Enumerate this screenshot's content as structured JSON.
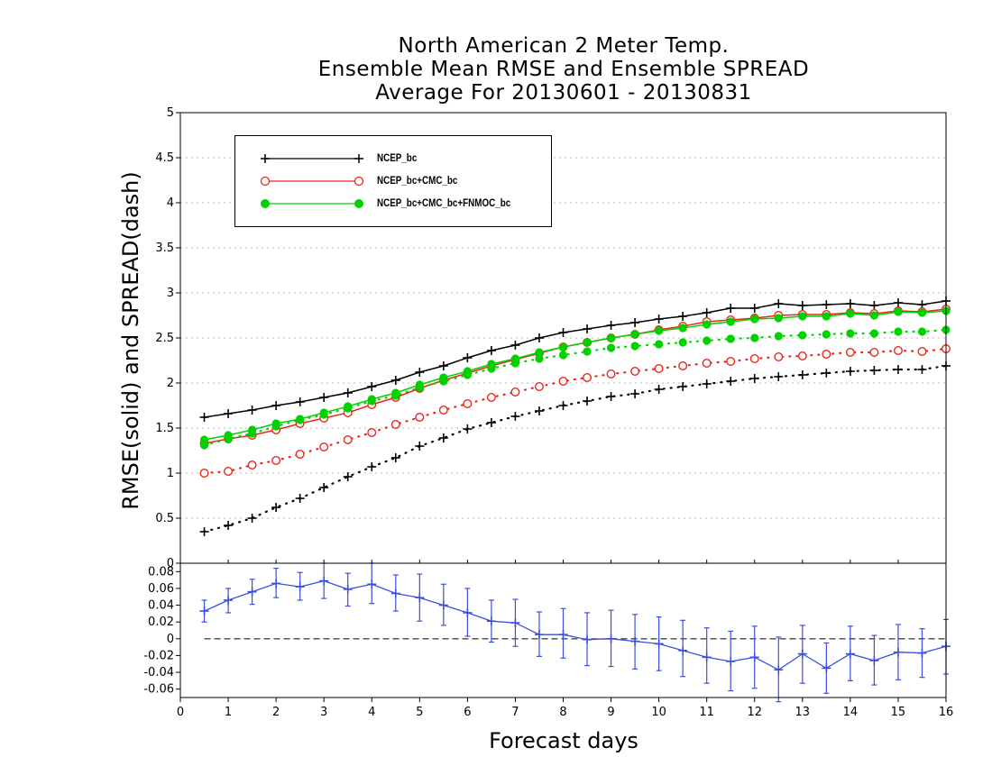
{
  "chart_data": [
    {
      "type": "line",
      "title": [
        "North American 2 Meter Temp.",
        "Ensemble Mean RMSE and Ensemble SPREAD",
        "Average For 20130601 - 20130831"
      ],
      "xlabel": "Forecast days",
      "ylabel": "RMSE(solid) and SPREAD(dash)",
      "xlim": [
        0,
        16
      ],
      "ylim": [
        0,
        5
      ],
      "yticks": [
        "0",
        "0.5",
        "1",
        "1.5",
        "2",
        "2.5",
        "3",
        "3.5",
        "4",
        "4.5",
        "5"
      ],
      "grid": true,
      "legend_position": "top-left",
      "x": [
        0.5,
        1,
        1.5,
        2,
        2.5,
        3,
        3.5,
        4,
        4.5,
        5,
        5.5,
        6,
        6.5,
        7,
        7.5,
        8,
        8.5,
        9,
        9.5,
        10,
        10.5,
        11,
        11.5,
        12,
        12.5,
        13,
        13.5,
        14,
        14.5,
        15,
        15.5,
        16
      ],
      "series": [
        {
          "name": "NCEP_bc",
          "color": "#000000",
          "marker": "plus",
          "rmse": [
            1.62,
            1.66,
            1.7,
            1.75,
            1.79,
            1.84,
            1.89,
            1.96,
            2.03,
            2.12,
            2.19,
            2.28,
            2.36,
            2.42,
            2.5,
            2.56,
            2.6,
            2.64,
            2.67,
            2.71,
            2.74,
            2.78,
            2.83,
            2.83,
            2.88,
            2.86,
            2.87,
            2.88,
            2.86,
            2.89,
            2.87,
            2.91
          ],
          "spread": [
            0.35,
            0.42,
            0.5,
            0.62,
            0.72,
            0.84,
            0.96,
            1.07,
            1.17,
            1.3,
            1.39,
            1.49,
            1.56,
            1.63,
            1.69,
            1.75,
            1.8,
            1.85,
            1.88,
            1.93,
            1.96,
            1.99,
            2.02,
            2.05,
            2.07,
            2.09,
            2.11,
            2.13,
            2.14,
            2.15,
            2.15,
            2.19
          ]
        },
        {
          "name": "NCEP_bc+CMC_bc",
          "color": "#e8281e",
          "marker": "open-circle",
          "rmse": [
            1.33,
            1.38,
            1.42,
            1.48,
            1.55,
            1.61,
            1.67,
            1.76,
            1.84,
            1.94,
            2.03,
            2.11,
            2.19,
            2.26,
            2.33,
            2.4,
            2.45,
            2.5,
            2.54,
            2.59,
            2.63,
            2.68,
            2.7,
            2.72,
            2.75,
            2.76,
            2.76,
            2.78,
            2.77,
            2.8,
            2.79,
            2.82
          ],
          "spread": [
            1.0,
            1.02,
            1.09,
            1.14,
            1.21,
            1.29,
            1.37,
            1.45,
            1.54,
            1.62,
            1.7,
            1.77,
            1.84,
            1.9,
            1.96,
            2.02,
            2.06,
            2.1,
            2.13,
            2.16,
            2.19,
            2.22,
            2.24,
            2.27,
            2.29,
            2.3,
            2.32,
            2.34,
            2.34,
            2.36,
            2.35,
            2.38
          ]
        },
        {
          "name": "NCEP_bc+CMC_bc+FNMOC_bc",
          "color": "#00d200",
          "marker": "filled-circle",
          "rmse": [
            1.37,
            1.42,
            1.48,
            1.55,
            1.6,
            1.67,
            1.74,
            1.82,
            1.89,
            1.98,
            2.06,
            2.13,
            2.21,
            2.27,
            2.34,
            2.4,
            2.45,
            2.5,
            2.54,
            2.58,
            2.61,
            2.65,
            2.68,
            2.71,
            2.72,
            2.74,
            2.74,
            2.77,
            2.75,
            2.79,
            2.78,
            2.8
          ],
          "spread": [
            1.31,
            1.38,
            1.44,
            1.52,
            1.59,
            1.65,
            1.72,
            1.8,
            1.86,
            1.95,
            2.02,
            2.09,
            2.16,
            2.22,
            2.27,
            2.31,
            2.35,
            2.39,
            2.41,
            2.43,
            2.45,
            2.47,
            2.49,
            2.5,
            2.52,
            2.53,
            2.54,
            2.55,
            2.55,
            2.57,
            2.57,
            2.59
          ]
        }
      ]
    },
    {
      "type": "line",
      "xlim": [
        0,
        16
      ],
      "xticks": [
        "0",
        "1",
        "2",
        "3",
        "4",
        "5",
        "6",
        "7",
        "8",
        "9",
        "10",
        "11",
        "12",
        "13",
        "14",
        "15",
        "16"
      ],
      "ylim": [
        -0.07,
        0.09
      ],
      "yticks": [
        "-0.06",
        "-0.04",
        "-0.02",
        "0",
        "0.02",
        "0.04",
        "0.06",
        "0.08"
      ],
      "color": "#3c4fe0",
      "series": [
        {
          "x": [
            0.5,
            1,
            1.5,
            2,
            2.5,
            3,
            3.5,
            4,
            4.5,
            5,
            5.5,
            6,
            6.5,
            7,
            7.5,
            8,
            8.5,
            9,
            9.5,
            10,
            10.5,
            11,
            11.5,
            12,
            12.5,
            13,
            13.5,
            14,
            14.5,
            15,
            15.5,
            16
          ],
          "values": [
            0.033,
            0.046,
            0.056,
            0.066,
            0.062,
            0.069,
            0.059,
            0.065,
            0.054,
            0.049,
            0.04,
            0.031,
            0.021,
            0.019,
            0.005,
            0.005,
            -0.001,
            0.0,
            -0.003,
            -0.006,
            -0.014,
            -0.022,
            -0.027,
            -0.022,
            -0.037,
            -0.018,
            -0.035,
            -0.018,
            -0.026,
            -0.016,
            -0.017,
            -0.009
          ],
          "error_low": [
            0.02,
            0.031,
            0.041,
            0.049,
            0.046,
            0.048,
            0.039,
            0.042,
            0.033,
            0.021,
            0.016,
            0.003,
            -0.004,
            -0.009,
            -0.021,
            -0.023,
            -0.032,
            -0.033,
            -0.036,
            -0.038,
            -0.045,
            -0.053,
            -0.062,
            -0.059,
            -0.075,
            -0.053,
            -0.065,
            -0.05,
            -0.055,
            -0.049,
            -0.046,
            -0.042
          ],
          "error_high": [
            0.046,
            0.06,
            0.071,
            0.084,
            0.079,
            0.09,
            0.078,
            0.09,
            0.076,
            0.077,
            0.065,
            0.06,
            0.046,
            0.047,
            0.032,
            0.036,
            0.031,
            0.034,
            0.029,
            0.026,
            0.022,
            0.013,
            0.009,
            0.015,
            0.002,
            0.016,
            -0.005,
            0.015,
            0.004,
            0.017,
            0.012,
            0.023
          ]
        }
      ],
      "reference_line": 0
    }
  ]
}
